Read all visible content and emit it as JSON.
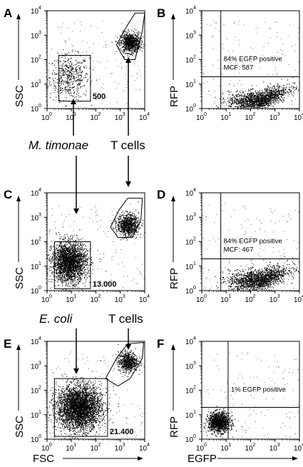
{
  "chart_data": [
    {
      "panel": "A",
      "type": "scatter",
      "xlabel": "",
      "ylabel": "SSC",
      "xlim": [
        1,
        10000
      ],
      "ylim": [
        1,
        10000
      ],
      "scale": "log",
      "x_ticks": [
        "10",
        "10",
        "10",
        "10",
        "10"
      ],
      "x_tick_exp": [
        "0",
        "1",
        "2",
        "3",
        "4"
      ],
      "y_ticks": [
        "10",
        "10",
        "10",
        "10",
        "10"
      ],
      "y_tick_exp": [
        "0",
        "1",
        "2",
        "3",
        "4"
      ],
      "gates": [
        {
          "kind": "rectangle",
          "x": [
            3,
            60
          ],
          "y": [
            2,
            150
          ],
          "count_label": "500"
        },
        {
          "kind": "polygon",
          "points": [
            [
              700,
              400
            ],
            [
              1700,
              2000
            ],
            [
              4000,
              8000
            ],
            [
              10000,
              8000
            ],
            [
              8000,
              1500
            ],
            [
              4000,
              100
            ],
            [
              1500,
              100
            ]
          ]
        }
      ],
      "populations": [
        {
          "name": "M. timonae",
          "n": 500,
          "center": [
            8,
            20
          ],
          "spread": [
            0.4,
            0.45
          ]
        },
        {
          "name": "T cells",
          "n": 900,
          "center": [
            2500,
            500
          ],
          "spread": [
            0.2,
            0.2
          ]
        }
      ],
      "annotations": []
    },
    {
      "panel": "B",
      "type": "scatter",
      "xlabel": "",
      "ylabel": "RFP",
      "xlim": [
        1,
        10000
      ],
      "ylim": [
        1,
        10000
      ],
      "scale": "log",
      "x_ticks": [
        "10",
        "10",
        "10",
        "10",
        "10"
      ],
      "x_tick_exp": [
        "0",
        "1",
        "2",
        "3",
        "4"
      ],
      "y_ticks": [
        "10",
        "10",
        "10",
        "10",
        "10"
      ],
      "y_tick_exp": [
        "0",
        "1",
        "2",
        "3",
        "4"
      ],
      "quadrant": {
        "x": 6,
        "y": 20
      },
      "populations": [
        {
          "name": "cells",
          "n": 1600,
          "center": [
            200,
            2
          ],
          "spread": [
            0.6,
            0.2
          ],
          "curve": 0.18
        }
      ],
      "annotations": [
        "84% EGFP positive",
        "MCF: 587"
      ]
    },
    {
      "panel": "C",
      "type": "scatter",
      "xlabel": "",
      "ylabel": "SSC",
      "xlim": [
        1,
        10000
      ],
      "ylim": [
        1,
        10000
      ],
      "scale": "log",
      "x_ticks": [
        "10",
        "10",
        "10",
        "10",
        "10"
      ],
      "x_tick_exp": [
        "0",
        "1",
        "2",
        "3",
        "4"
      ],
      "y_ticks": [
        "10",
        "10",
        "10",
        "10",
        "10"
      ],
      "y_tick_exp": [
        "0",
        "1",
        "2",
        "3",
        "4"
      ],
      "gates": [
        {
          "kind": "rectangle",
          "x": [
            2,
            60
          ],
          "y": [
            1.2,
            100
          ],
          "count_label": "13.000"
        },
        {
          "kind": "polygon",
          "points": [
            [
              400,
              400
            ],
            [
              900,
              2000
            ],
            [
              2000,
              6000
            ],
            [
              8000,
              6000
            ],
            [
              7000,
              800
            ],
            [
              3000,
              150
            ],
            [
              800,
              150
            ]
          ]
        }
      ],
      "populations": [
        {
          "name": "M. timonae",
          "n": 2600,
          "center": [
            8,
            15
          ],
          "spread": [
            0.35,
            0.4
          ]
        },
        {
          "name": "T cells",
          "n": 900,
          "center": [
            2000,
            500
          ],
          "spread": [
            0.22,
            0.22
          ]
        }
      ],
      "annotations": [
        "M. timonae",
        "T cells"
      ]
    },
    {
      "panel": "D",
      "type": "scatter",
      "xlabel": "",
      "ylabel": "RFP",
      "xlim": [
        1,
        10000
      ],
      "ylim": [
        1,
        10000
      ],
      "scale": "log",
      "x_ticks": [
        "10",
        "10",
        "10",
        "10",
        "10"
      ],
      "x_tick_exp": [
        "0",
        "1",
        "2",
        "3",
        "4"
      ],
      "y_ticks": [
        "10",
        "10",
        "10",
        "10",
        "10"
      ],
      "y_tick_exp": [
        "0",
        "1",
        "2",
        "3",
        "4"
      ],
      "quadrant": {
        "x": 6,
        "y": 20
      },
      "populations": [
        {
          "name": "cells",
          "n": 1700,
          "center": [
            200,
            2.5
          ],
          "spread": [
            0.6,
            0.22
          ],
          "curve": 0.16
        }
      ],
      "annotations": [
        "84% EGFP positive",
        "MCF: 467"
      ]
    },
    {
      "panel": "E",
      "type": "scatter",
      "xlabel": "FSC",
      "ylabel": "SSC",
      "xlim": [
        1,
        10000
      ],
      "ylim": [
        1,
        10000
      ],
      "scale": "log",
      "x_ticks": [
        "10",
        "10",
        "10",
        "10",
        "10"
      ],
      "x_tick_exp": [
        "0",
        "1",
        "2",
        "3",
        "4"
      ],
      "y_ticks": [
        "10",
        "10",
        "10",
        "10",
        "10"
      ],
      "y_tick_exp": [
        "0",
        "1",
        "2",
        "3",
        "4"
      ],
      "gates": [
        {
          "kind": "rectangle",
          "x": [
            2,
            300
          ],
          "y": [
            1.3,
            300
          ],
          "count_label": "21.400"
        },
        {
          "kind": "polygon",
          "points": [
            [
              250,
              300
            ],
            [
              700,
              2000
            ],
            [
              2000,
              8000
            ],
            [
              9000,
              9000
            ],
            [
              8000,
              2000
            ],
            [
              2500,
              300
            ],
            [
              800,
              150
            ]
          ]
        }
      ],
      "populations": [
        {
          "name": "E. coli",
          "n": 3800,
          "center": [
            20,
            20
          ],
          "spread": [
            0.45,
            0.45
          ]
        },
        {
          "name": "T cells",
          "n": 700,
          "center": [
            2000,
            1500
          ],
          "spread": [
            0.2,
            0.2
          ]
        }
      ],
      "annotations": [
        "E. coli",
        "T cells"
      ]
    },
    {
      "panel": "F",
      "type": "scatter",
      "xlabel": "EGFP",
      "ylabel": "RFP",
      "xlim": [
        1,
        10000
      ],
      "ylim": [
        1,
        10000
      ],
      "scale": "log",
      "x_ticks": [
        "10",
        "10",
        "10",
        "10",
        "10"
      ],
      "x_tick_exp": [
        "0",
        "1",
        "2",
        "3",
        "4"
      ],
      "y_ticks": [
        "10",
        "10",
        "10",
        "10",
        "10"
      ],
      "y_tick_exp": [
        "0",
        "1",
        "2",
        "3",
        "4"
      ],
      "quadrant": {
        "x": 12,
        "y": 20
      },
      "populations": [
        {
          "name": "cells",
          "n": 1300,
          "center": [
            5,
            5
          ],
          "spread": [
            0.22,
            0.2
          ]
        }
      ],
      "annotations": [
        "1% EGFP positive"
      ]
    }
  ]
}
